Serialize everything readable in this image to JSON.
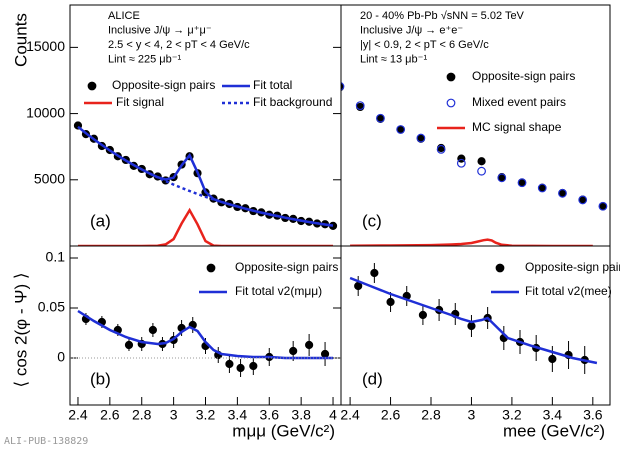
{
  "chart_data": [
    {
      "type": "scatter",
      "panel_label": "(a)",
      "y_label": "Counts",
      "annotations": [
        "ALICE",
        "Inclusive J/ψ → μ⁺μ⁻",
        "2.5 < y < 4,  2 < pT < 4 GeV/c",
        "Lint ≈ 225 μb⁻¹"
      ],
      "xlim": [
        2.35,
        4.05
      ],
      "ylim": [
        0,
        18200
      ],
      "yticks": [
        5000,
        10000,
        15000
      ],
      "series": [
        {
          "name": "Opposite-sign pairs",
          "color": "#000000",
          "style": "points",
          "x": [
            2.4,
            2.45,
            2.5,
            2.55,
            2.6,
            2.65,
            2.7,
            2.75,
            2.8,
            2.85,
            2.9,
            2.95,
            3.0,
            3.05,
            3.1,
            3.15,
            3.2,
            3.25,
            3.3,
            3.35,
            3.4,
            3.45,
            3.5,
            3.55,
            3.6,
            3.65,
            3.7,
            3.75,
            3.8,
            3.85,
            3.9,
            3.95,
            4.0
          ],
          "values": [
            9100,
            8450,
            8100,
            7550,
            7250,
            6780,
            6500,
            6050,
            5820,
            5420,
            5250,
            4950,
            5200,
            6150,
            6780,
            5500,
            4050,
            3580,
            3300,
            3170,
            2950,
            2850,
            2640,
            2540,
            2360,
            2290,
            2120,
            2050,
            1890,
            1830,
            1700,
            1640,
            1520
          ]
        },
        {
          "name": "Fit total",
          "color": "#1f2fd6",
          "style": "line",
          "x": [
            2.4,
            2.45,
            2.5,
            2.55,
            2.6,
            2.65,
            2.7,
            2.75,
            2.8,
            2.85,
            2.9,
            2.95,
            3.0,
            3.05,
            3.1,
            3.15,
            3.2,
            3.25,
            3.3,
            3.35,
            3.4,
            3.45,
            3.5,
            3.55,
            3.6,
            3.65,
            3.7,
            3.75,
            3.8,
            3.85,
            3.9,
            3.95,
            4.0
          ],
          "values": [
            9000,
            8516,
            8058,
            7625,
            7215,
            6827,
            6460,
            6112,
            5784,
            5473,
            5198,
            5020,
            5156,
            6087,
            6851,
            5568,
            4087,
            3547,
            3328,
            3149,
            2980,
            2820,
            2669,
            2526,
            2390,
            2262,
            2140,
            2026,
            1917,
            1814,
            1717,
            1625,
            1538
          ]
        },
        {
          "name": "Fit signal",
          "color": "#e8231c",
          "style": "line",
          "x": [
            2.4,
            2.5,
            2.6,
            2.7,
            2.8,
            2.85,
            2.9,
            2.95,
            3.0,
            3.05,
            3.1,
            3.15,
            3.2,
            3.25,
            3.3,
            3.4,
            3.6,
            3.8,
            4.0
          ],
          "values": [
            0,
            0,
            0,
            0,
            0,
            5,
            20,
            120,
            520,
            1700,
            2700,
            1640,
            370,
            30,
            0,
            0,
            0,
            0,
            0
          ]
        },
        {
          "name": "Fit background",
          "color": "#1f2fd6",
          "style": "dashed",
          "x": [
            2.85,
            2.9,
            2.95,
            3.0,
            3.05,
            3.1,
            3.15,
            3.2,
            3.25,
            3.3,
            3.35,
            3.4,
            3.45,
            3.5,
            3.55,
            3.6,
            3.65,
            3.7,
            3.75,
            3.8,
            3.85,
            3.9,
            3.95,
            4.0
          ],
          "values": [
            5473,
            5178,
            4900,
            4636,
            4387,
            4151,
            3928,
            3717,
            3517,
            3328,
            3149,
            2980,
            2820,
            2669,
            2526,
            2390,
            2262,
            2140,
            2026,
            1917,
            1814,
            1717,
            1625,
            1538
          ]
        }
      ]
    },
    {
      "type": "scatter",
      "panel_label": "(b)",
      "y_label": "⟨ cos 2(φ - Ψ) ⟩",
      "x_label": "mμμ (GeV/c²)",
      "xlim": [
        2.35,
        4.05
      ],
      "ylim": [
        -0.047,
        0.112
      ],
      "xticks": [
        2.4,
        2.6,
        2.8,
        3,
        3.2,
        3.4,
        3.6,
        3.8,
        4
      ],
      "yticks": [
        0,
        0.05,
        0.1
      ],
      "series": [
        {
          "name": "Opposite-sign pairs",
          "color": "#000000",
          "style": "points",
          "x": [
            2.45,
            2.55,
            2.65,
            2.72,
            2.8,
            2.87,
            2.93,
            3.0,
            3.05,
            3.12,
            3.2,
            3.28,
            3.35,
            3.42,
            3.5,
            3.6,
            3.75,
            3.85,
            3.95
          ],
          "values": [
            0.039,
            0.036,
            0.028,
            0.013,
            0.014,
            0.028,
            0.014,
            0.018,
            0.03,
            0.033,
            0.012,
            0.003,
            -0.006,
            -0.01,
            -0.008,
            0.001,
            0.007,
            0.013,
            0.004
          ],
          "errors": [
            0.006,
            0.006,
            0.006,
            0.006,
            0.007,
            0.007,
            0.007,
            0.008,
            0.008,
            0.008,
            0.008,
            0.008,
            0.009,
            0.009,
            0.009,
            0.009,
            0.01,
            0.011,
            0.012
          ]
        },
        {
          "name": "Fit total v2(mμμ)",
          "color": "#1f2fd6",
          "style": "line",
          "x": [
            2.4,
            2.5,
            2.6,
            2.7,
            2.8,
            2.9,
            2.95,
            3.0,
            3.05,
            3.1,
            3.15,
            3.2,
            3.25,
            3.3,
            3.4,
            3.5,
            3.6,
            3.7,
            3.8,
            3.9,
            4.0
          ],
          "values": [
            0.047,
            0.037,
            0.028,
            0.021,
            0.016,
            0.014,
            0.015,
            0.019,
            0.026,
            0.031,
            0.027,
            0.016,
            0.008,
            0.004,
            0.002,
            0.001,
            0.001,
            0,
            0,
            0,
            0
          ]
        }
      ]
    },
    {
      "type": "scatter",
      "panel_label": "(c)",
      "annotations": [
        "20 - 40% Pb-Pb √sNN = 5.02 TeV",
        "Inclusive J/ψ → e⁺e⁻",
        "|y| < 0.9,  2 < pT < 6 GeV/c",
        "Lint ≈ 13 μb⁻¹"
      ],
      "xlim": [
        2.355,
        3.685
      ],
      "ylim": [
        0,
        18200
      ],
      "series": [
        {
          "name": "Opposite-sign pairs",
          "color": "#000000",
          "style": "points",
          "x": [
            2.35,
            2.45,
            2.55,
            2.65,
            2.75,
            2.85,
            2.95,
            3.05,
            3.15,
            3.25,
            3.35,
            3.45,
            3.55,
            3.65
          ],
          "values": [
            12000,
            10500,
            9600,
            8800,
            8100,
            7400,
            6600,
            6400,
            5200,
            4800,
            4400,
            4000,
            3500,
            3000
          ]
        },
        {
          "name": "Mixed event pairs",
          "color": "#1f2fd6",
          "style": "open-points",
          "x": [
            2.35,
            2.45,
            2.55,
            2.65,
            2.75,
            2.85,
            2.95,
            3.05,
            3.15,
            3.25,
            3.35,
            3.45,
            3.55,
            3.65
          ],
          "values": [
            12050,
            10600,
            9650,
            8800,
            8150,
            7300,
            6250,
            5650,
            5150,
            4780,
            4380,
            3980,
            3480,
            3000
          ]
        },
        {
          "name": "MC signal shape",
          "color": "#e8231c",
          "style": "line",
          "x": [
            2.4,
            2.6,
            2.8,
            2.9,
            2.95,
            3.0,
            3.03,
            3.06,
            3.08,
            3.1,
            3.12,
            3.15,
            3.2,
            3.4,
            3.6
          ],
          "values": [
            20,
            40,
            70,
            110,
            150,
            230,
            330,
            440,
            480,
            420,
            250,
            90,
            20,
            0,
            0
          ]
        }
      ]
    },
    {
      "type": "scatter",
      "panel_label": "(d)",
      "x_label": "mee (GeV/c²)",
      "xlim": [
        2.355,
        3.685
      ],
      "ylim": [
        -0.047,
        0.112
      ],
      "xticks": [
        2.4,
        2.6,
        2.8,
        3,
        3.2,
        3.4,
        3.6
      ],
      "series": [
        {
          "name": "Opposite-sign pairs",
          "color": "#000000",
          "style": "points",
          "x": [
            2.44,
            2.52,
            2.6,
            2.68,
            2.76,
            2.84,
            2.92,
            3.0,
            3.08,
            3.16,
            3.24,
            3.32,
            3.4,
            3.48,
            3.56
          ],
          "values": [
            0.072,
            0.085,
            0.056,
            0.062,
            0.043,
            0.048,
            0.044,
            0.032,
            0.04,
            0.02,
            0.016,
            0.01,
            -0.001,
            0.003,
            -0.002
          ],
          "errors": [
            0.01,
            0.01,
            0.01,
            0.01,
            0.01,
            0.011,
            0.011,
            0.011,
            0.011,
            0.012,
            0.012,
            0.013,
            0.013,
            0.014,
            0.014
          ]
        },
        {
          "name": "Fit total v2(mee)",
          "color": "#1f2fd6",
          "style": "line",
          "x": [
            2.4,
            2.5,
            2.6,
            2.7,
            2.8,
            2.9,
            2.95,
            3.0,
            3.05,
            3.08,
            3.12,
            3.18,
            3.3,
            3.4,
            3.5,
            3.62
          ],
          "values": [
            0.08,
            0.072,
            0.064,
            0.057,
            0.05,
            0.043,
            0.039,
            0.036,
            0.038,
            0.04,
            0.032,
            0.02,
            0.012,
            0.006,
            0.0,
            -0.005
          ]
        }
      ]
    }
  ],
  "footer": "ALI-PUB-138829"
}
